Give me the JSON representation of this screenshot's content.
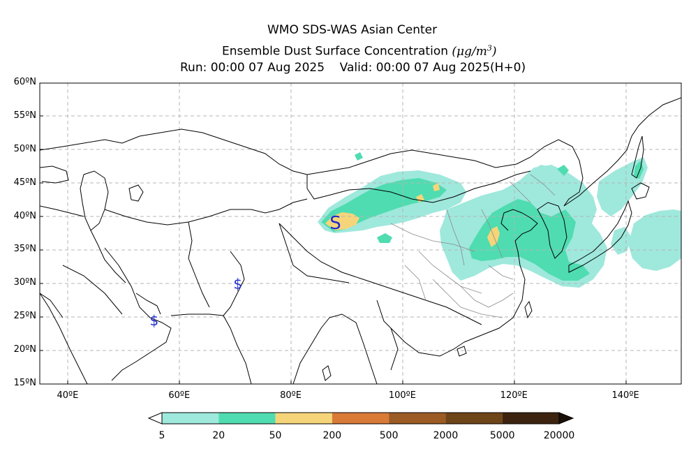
{
  "title": {
    "line1": "WMO SDS-WAS Asian Center",
    "line2_text": "Ensemble Dust Surface Concentration",
    "line2_unit": "(μg/m",
    "line2_unit_sup": "3",
    "line2_unit_close": ")",
    "line3": "Run: 00:00 07 Aug 2025    Valid: 00:00 07 Aug 2025(H+0)"
  },
  "map": {
    "lon_range": [
      35,
      150
    ],
    "lat_range": [
      15,
      60
    ],
    "lat_ticks": [
      "60ºN",
      "55ºN",
      "50ºN",
      "45ºN",
      "40ºN",
      "35ºN",
      "30ºN",
      "25ºN",
      "20ºN",
      "15ºN"
    ],
    "lon_ticks": [
      "40ºE",
      "60ºE",
      "80ºE",
      "100ºE",
      "120ºE",
      "140ºE"
    ],
    "grid": true,
    "markers": [
      {
        "symbol": "S",
        "lon": 88.0,
        "lat": 39.2,
        "color": "#1d2bd0",
        "size": "large"
      },
      {
        "symbol": "$",
        "lon": 70.5,
        "lat": 30.0,
        "color": "#1d2bd0",
        "size": "small"
      },
      {
        "symbol": "$",
        "lon": 55.5,
        "lat": 24.5,
        "color": "#1d2bd0",
        "size": "small"
      }
    ]
  },
  "colorbar": {
    "levels": [
      "5",
      "20",
      "50",
      "200",
      "500",
      "2000",
      "5000",
      "20000"
    ],
    "colors": [
      "#9fe8dc",
      "#4fdcb0",
      "#f6d57a",
      "#d97a37",
      "#9c5b25",
      "#6e4419",
      "#3d2410"
    ],
    "under_color": "#ffffff",
    "over_color": "#1a0f06"
  }
}
